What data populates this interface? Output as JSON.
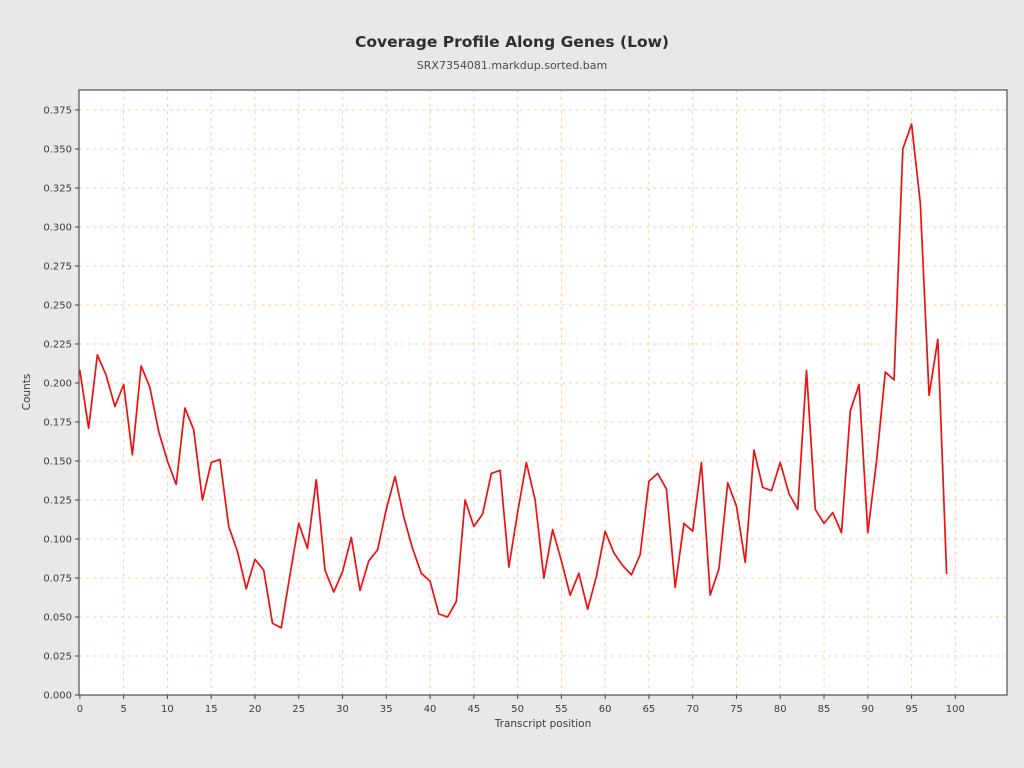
{
  "chart_data": {
    "type": "line",
    "title": "Coverage Profile Along Genes (Low)",
    "subtitle": "SRX7354081.markdup.sorted.bam",
    "xlabel": "Transcript position",
    "ylabel": "Counts",
    "x_start": 0,
    "x_step": 1,
    "values": [
      0.208,
      0.171,
      0.218,
      0.205,
      0.185,
      0.199,
      0.154,
      0.211,
      0.197,
      0.169,
      0.15,
      0.135,
      0.184,
      0.17,
      0.125,
      0.149,
      0.151,
      0.108,
      0.092,
      0.068,
      0.087,
      0.08,
      0.046,
      0.043,
      0.077,
      0.11,
      0.094,
      0.138,
      0.08,
      0.066,
      0.079,
      0.101,
      0.067,
      0.086,
      0.093,
      0.119,
      0.14,
      0.114,
      0.094,
      0.078,
      0.073,
      0.052,
      0.05,
      0.06,
      0.125,
      0.108,
      0.116,
      0.142,
      0.144,
      0.082,
      0.117,
      0.149,
      0.125,
      0.075,
      0.106,
      0.086,
      0.064,
      0.078,
      0.055,
      0.076,
      0.105,
      0.091,
      0.083,
      0.077,
      0.09,
      0.137,
      0.142,
      0.132,
      0.069,
      0.11,
      0.105,
      0.149,
      0.064,
      0.081,
      0.136,
      0.121,
      0.085,
      0.157,
      0.133,
      0.131,
      0.149,
      0.129,
      0.119,
      0.208,
      0.119,
      0.11,
      0.117,
      0.104,
      0.182,
      0.199,
      0.104,
      0.15,
      0.207,
      0.202,
      0.35,
      0.366,
      0.315,
      0.192,
      0.228,
      0.078
    ],
    "xticks": [
      0,
      5,
      10,
      15,
      20,
      25,
      30,
      35,
      40,
      45,
      50,
      55,
      60,
      65,
      70,
      75,
      80,
      85,
      90,
      95,
      100
    ],
    "yticks": [
      0.0,
      0.025,
      0.05,
      0.075,
      0.1,
      0.125,
      0.15,
      0.175,
      0.2,
      0.225,
      0.25,
      0.275,
      0.3,
      0.325,
      0.35,
      0.375
    ],
    "ytick_decimals": 3,
    "xlim": [
      -0.1,
      105.9
    ],
    "ylim": [
      0,
      0.3878
    ],
    "grid": true,
    "legend": "none",
    "colors": {
      "line": "#ee1111",
      "grid": "#f8cfa4",
      "figure_background": "#e8e8e8",
      "plot_background": "#ffffff",
      "frame": "#4f4f4f",
      "tick": "#3c3c3c"
    }
  }
}
